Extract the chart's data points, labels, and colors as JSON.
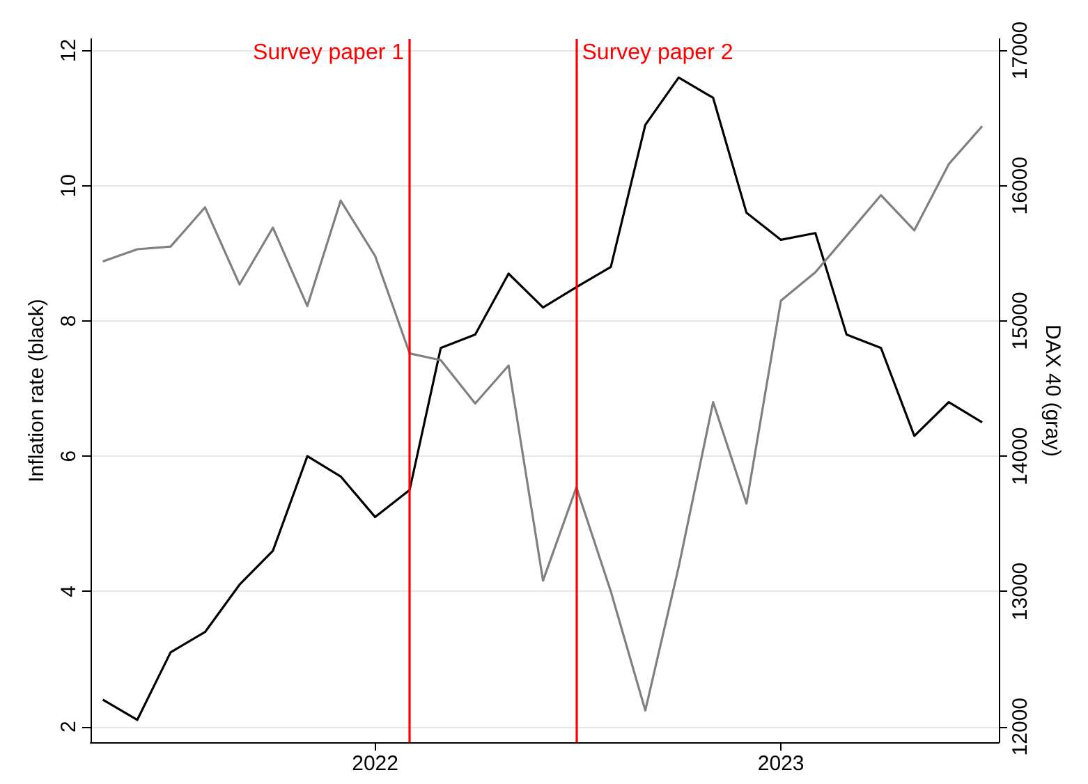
{
  "chart_data": {
    "type": "line",
    "ylabel": "Inflation rate (black)",
    "y2label": "DAX 40 (gray)",
    "x": [
      "2021-05",
      "2021-06",
      "2021-07",
      "2021-08",
      "2021-09",
      "2021-10",
      "2021-11",
      "2021-12",
      "2022-01",
      "2022-02",
      "2022-03",
      "2022-04",
      "2022-05",
      "2022-06",
      "2022-07",
      "2022-08",
      "2022-09",
      "2022-10",
      "2022-11",
      "2022-12",
      "2023-01",
      "2023-02",
      "2023-03",
      "2023-04",
      "2023-05",
      "2023-06",
      "2023-07"
    ],
    "series": [
      {
        "color": "#000000",
        "values": [
          2.4,
          2.1,
          3.1,
          3.4,
          4.1,
          4.6,
          6.0,
          5.7,
          5.1,
          5.5,
          7.6,
          7.8,
          8.7,
          8.2,
          8.5,
          8.8,
          10.9,
          11.6,
          11.3,
          9.6,
          9.2,
          9.3,
          7.8,
          7.6,
          6.3,
          6.8,
          6.5
        ]
      },
      {
        "color": "#808080",
        "axis": "y2",
        "values": [
          15440,
          15530,
          15550,
          15840,
          15270,
          15690,
          15110,
          15890,
          15480,
          14760,
          14710,
          14390,
          14670,
          13080,
          13770,
          13000,
          12120,
          13180,
          14400,
          13650,
          15150,
          15360,
          15630,
          15930,
          15670,
          16160,
          16440
        ]
      }
    ],
    "xlim": [
      "2021-04-20",
      "2023-07-16"
    ],
    "xticks": [
      "2022",
      "2023"
    ],
    "ylim": [
      1.77,
      12.17
    ],
    "yticks": [
      2,
      4,
      6,
      8,
      10,
      12
    ],
    "y2lim": [
      11885,
      17085
    ],
    "y2ticks": [
      12000,
      13000,
      14000,
      15000,
      16000,
      17000
    ],
    "ref_lines": [
      {
        "axis": "x",
        "value": "2022-02",
        "label": "Survey paper 1",
        "color": "#ff0000"
      },
      {
        "axis": "x",
        "value": "2022-07",
        "label": "Survey paper 2",
        "color": "#ff0000"
      }
    ],
    "grid": "y",
    "marker": "none",
    "line_style": "solid"
  }
}
